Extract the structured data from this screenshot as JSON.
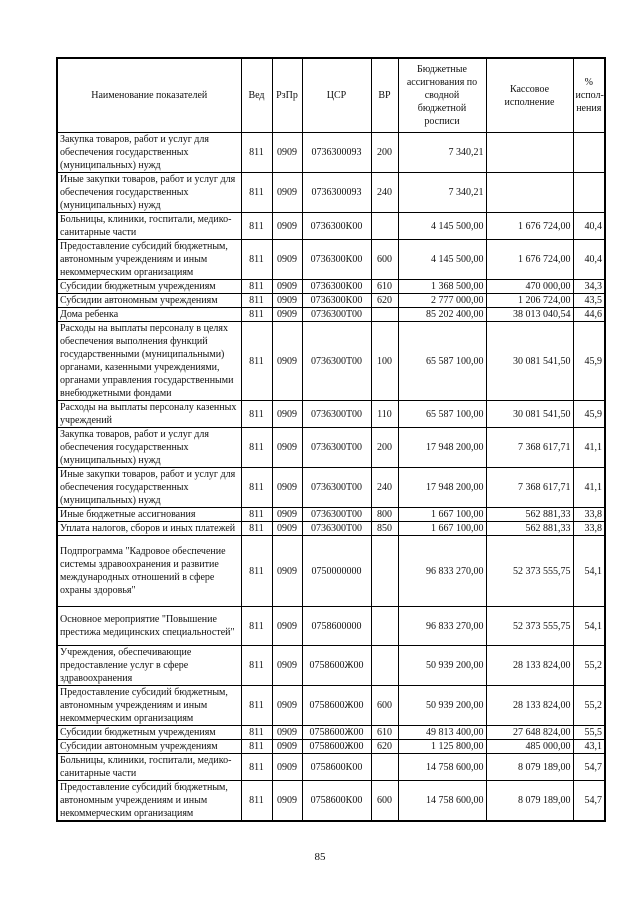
{
  "page": {
    "number": "85"
  },
  "table": {
    "columns": [
      {
        "key": "name",
        "label": "Наименование показателей"
      },
      {
        "key": "ved",
        "label": "Вед"
      },
      {
        "key": "rzpr",
        "label": "РзПр"
      },
      {
        "key": "csr",
        "label": "ЦСР"
      },
      {
        "key": "vr",
        "label": "ВР"
      },
      {
        "key": "budget",
        "label": "Бюджетные ассигнования по сводной бюджетной росписи"
      },
      {
        "key": "cash",
        "label": "Кассовое исполнение"
      },
      {
        "key": "pct",
        "label": "% испол-нения"
      }
    ],
    "rows": [
      {
        "name": "Закупка товаров, работ и услуг для обеспечения государственных (муниципальных) нужд",
        "ved": "811",
        "rzpr": "0909",
        "csr": "0736300093",
        "vr": "200",
        "budget": "7 340,21",
        "cash": "",
        "pct": "",
        "pad": ""
      },
      {
        "name": "Иные закупки товаров, работ и услуг для обеспечения государственных (муниципальных) нужд",
        "ved": "811",
        "rzpr": "0909",
        "csr": "0736300093",
        "vr": "240",
        "budget": "7 340,21",
        "cash": "",
        "pct": "",
        "pad": ""
      },
      {
        "name": "Больницы, клиники, госпитали, медико-санитарные части",
        "ved": "811",
        "rzpr": "0909",
        "csr": "0736300К00",
        "vr": "",
        "budget": "4 145 500,00",
        "cash": "1 676 724,00",
        "pct": "40,4",
        "pad": ""
      },
      {
        "name": "Предоставление субсидий бюджетным, автономным учреждениям и иным некоммерческим организациям",
        "ved": "811",
        "rzpr": "0909",
        "csr": "0736300К00",
        "vr": "600",
        "budget": "4 145 500,00",
        "cash": "1 676 724,00",
        "pct": "40,4",
        "pad": ""
      },
      {
        "name": "Субсидии бюджетным учреждениям",
        "ved": "811",
        "rzpr": "0909",
        "csr": "0736300К00",
        "vr": "610",
        "budget": "1 368 500,00",
        "cash": "470 000,00",
        "pct": "34,3",
        "pad": ""
      },
      {
        "name": "Субсидии автономным учреждениям",
        "ved": "811",
        "rzpr": "0909",
        "csr": "0736300К00",
        "vr": "620",
        "budget": "2 777 000,00",
        "cash": "1 206 724,00",
        "pct": "43,5",
        "pad": ""
      },
      {
        "name": "Дома ребенка",
        "ved": "811",
        "rzpr": "0909",
        "csr": "0736300Т00",
        "vr": "",
        "budget": "85 202 400,00",
        "cash": "38 013 040,54",
        "pct": "44,6",
        "pad": ""
      },
      {
        "name": "Расходы на выплаты персоналу в целях обеспечения выполнения функций государственными (муниципальными) органами, казенными учреждениями, органами управления государственными внебюджетными фондами",
        "ved": "811",
        "rzpr": "0909",
        "csr": "0736300Т00",
        "vr": "100",
        "budget": "65 587 100,00",
        "cash": "30 081 541,50",
        "pct": "45,9",
        "pad": ""
      },
      {
        "name": "Расходы на выплаты персоналу казенных учреждений",
        "ved": "811",
        "rzpr": "0909",
        "csr": "0736300Т00",
        "vr": "110",
        "budget": "65 587 100,00",
        "cash": "30 081 541,50",
        "pct": "45,9",
        "pad": ""
      },
      {
        "name": "Закупка товаров, работ и услуг для обеспечения государственных (муниципальных) нужд",
        "ved": "811",
        "rzpr": "0909",
        "csr": "0736300Т00",
        "vr": "200",
        "budget": "17 948 200,00",
        "cash": "7 368 617,71",
        "pct": "41,1",
        "pad": ""
      },
      {
        "name": "Иные закупки товаров, работ и услуг для обеспечения государственных (муниципальных) нужд",
        "ved": "811",
        "rzpr": "0909",
        "csr": "0736300Т00",
        "vr": "240",
        "budget": "17 948 200,00",
        "cash": "7 368 617,71",
        "pct": "41,1",
        "pad": ""
      },
      {
        "name": "Иные бюджетные ассигнования",
        "ved": "811",
        "rzpr": "0909",
        "csr": "0736300Т00",
        "vr": "800",
        "budget": "1 667 100,00",
        "cash": "562 881,33",
        "pct": "33,8",
        "pad": ""
      },
      {
        "name": "Уплата налогов, сборов и иных платежей",
        "ved": "811",
        "rzpr": "0909",
        "csr": "0736300Т00",
        "vr": "850",
        "budget": "1 667 100,00",
        "cash": "562 881,33",
        "pct": "33,8",
        "pad": ""
      },
      {
        "name": "Подпрограмма \"Кадровое обеспечение системы здравоохранения и развитие международных отношений в сфере охраны здоровья\"",
        "ved": "811",
        "rzpr": "0909",
        "csr": "0750000000",
        "vr": "",
        "budget": "96 833 270,00",
        "cash": "52 373 555,75",
        "pct": "54,1",
        "pad": "lg"
      },
      {
        "name": "Основное мероприятие \"Повышение престижа медицинских специальностей\"",
        "ved": "811",
        "rzpr": "0909",
        "csr": "0758600000",
        "vr": "",
        "budget": "96 833 270,00",
        "cash": "52 373 555,75",
        "pct": "54,1",
        "pad": "sm"
      },
      {
        "name": "Учреждения, обеспечивающие предоставление услуг в сфере здравоохранения",
        "ved": "811",
        "rzpr": "0909",
        "csr": "0758600Ж00",
        "vr": "",
        "budget": "50 939 200,00",
        "cash": "28 133 824,00",
        "pct": "55,2",
        "pad": ""
      },
      {
        "name": "Предоставление субсидий бюджетным, автономным учреждениям и иным некоммерческим организациям",
        "ved": "811",
        "rzpr": "0909",
        "csr": "0758600Ж00",
        "vr": "600",
        "budget": "50 939 200,00",
        "cash": "28 133 824,00",
        "pct": "55,2",
        "pad": ""
      },
      {
        "name": "Субсидии бюджетным учреждениям",
        "ved": "811",
        "rzpr": "0909",
        "csr": "0758600Ж00",
        "vr": "610",
        "budget": "49 813 400,00",
        "cash": "27 648 824,00",
        "pct": "55,5",
        "pad": ""
      },
      {
        "name": "Субсидии автономным учреждениям",
        "ved": "811",
        "rzpr": "0909",
        "csr": "0758600Ж00",
        "vr": "620",
        "budget": "1 125 800,00",
        "cash": "485 000,00",
        "pct": "43,1",
        "pad": ""
      },
      {
        "name": "Больницы, клиники, госпитали, медико-санитарные части",
        "ved": "811",
        "rzpr": "0909",
        "csr": "0758600К00",
        "vr": "",
        "budget": "14 758 600,00",
        "cash": "8 079 189,00",
        "pct": "54,7",
        "pad": ""
      },
      {
        "name": "Предоставление субсидий бюджетным, автономным учреждениям и иным некоммерческим организациям",
        "ved": "811",
        "rzpr": "0909",
        "csr": "0758600К00",
        "vr": "600",
        "budget": "14 758 600,00",
        "cash": "8 079 189,00",
        "pct": "54,7",
        "pad": ""
      }
    ]
  }
}
